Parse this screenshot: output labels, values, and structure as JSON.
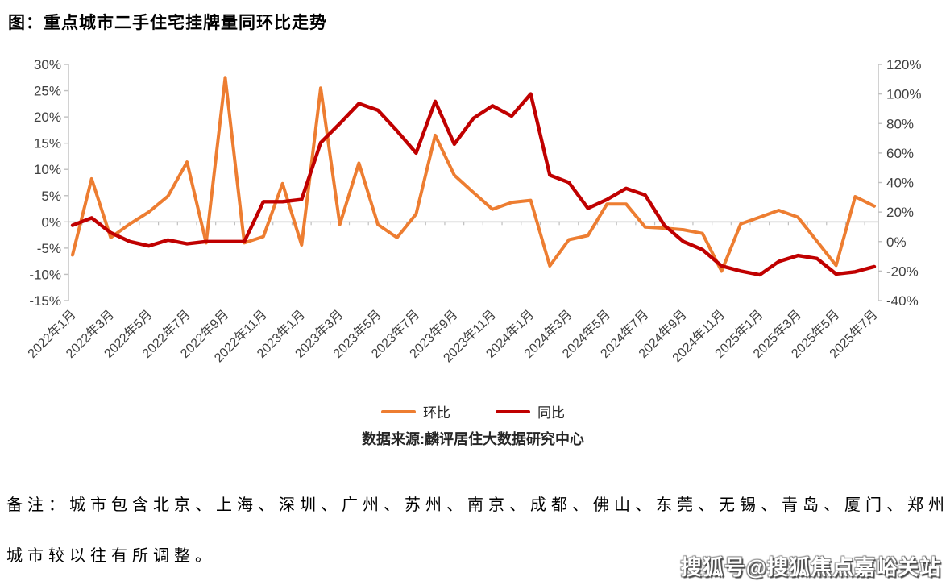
{
  "title": "图：重点城市二手住宅挂牌量同环比走势",
  "legend": {
    "mom": "环比",
    "yoy": "同比"
  },
  "source": "数据来源:麟评居住大数据研究中心",
  "note": {
    "line1": "备注：城市包含北京、上海、深圳、广州、苏州、南京、成都、佛山、东莞、无锡、青岛、厦门、郑州，",
    "line2": "城市较以往有所调整。"
  },
  "watermark": "搜狐号@搜狐焦点嘉峪关站",
  "colors": {
    "mom": "#ED7D31",
    "yoy": "#C00000",
    "axis_line": "#BFBFBF",
    "tick_text": "#404040"
  },
  "chart_data": {
    "type": "line",
    "x": [
      "2022年1月",
      "2022年2月",
      "2022年3月",
      "2022年4月",
      "2022年5月",
      "2022年6月",
      "2022年7月",
      "2022年8月",
      "2022年9月",
      "2022年10月",
      "2022年11月",
      "2022年12月",
      "2023年1月",
      "2023年2月",
      "2023年3月",
      "2023年4月",
      "2023年5月",
      "2023年6月",
      "2023年7月",
      "2023年8月",
      "2023年9月",
      "2023年10月",
      "2023年11月",
      "2023年12月",
      "2024年1月",
      "2024年2月",
      "2024年3月",
      "2024年4月",
      "2024年5月",
      "2024年6月",
      "2024年7月",
      "2024年8月",
      "2024年9月",
      "2024年10月",
      "2024年11月",
      "2024年12月",
      "2025年1月",
      "2025年2月",
      "2025年3月",
      "2025年4月",
      "2025年5月",
      "2025年6月",
      "2025年7月"
    ],
    "x_label_every": 2,
    "series": [
      {
        "name": "环比",
        "axis": "left",
        "color": "#ED7D31",
        "values": [
          -6.3,
          8.2,
          -3.0,
          -0.4,
          1.9,
          4.9,
          11.4,
          -4.0,
          27.5,
          -4.0,
          -2.8,
          7.3,
          -4.4,
          25.5,
          -0.5,
          11.2,
          -0.5,
          -3.0,
          1.5,
          16.5,
          8.9,
          5.6,
          2.4,
          3.7,
          4.1,
          -8.4,
          -3.4,
          -2.6,
          3.4,
          3.4,
          -1.0,
          -1.2,
          -1.5,
          -2.2,
          -9.4,
          -0.4,
          0.9,
          2.2,
          0.9,
          -3.7,
          -8.3,
          4.8,
          3.0
        ]
      },
      {
        "name": "同比",
        "axis": "right",
        "color": "#C00000",
        "values": [
          11,
          16,
          6,
          0,
          -3,
          1,
          -1.5,
          0,
          0,
          0,
          27,
          27,
          28.5,
          67,
          80,
          93.5,
          89,
          75,
          60,
          95,
          66,
          83.5,
          92,
          85,
          100,
          45,
          40,
          22.5,
          28.5,
          36,
          31.5,
          11,
          0,
          -5.5,
          -16.5,
          -20,
          -22.5,
          -13.5,
          -9.5,
          -11.5,
          -22,
          -20.5,
          -17
        ]
      }
    ],
    "left_axis": {
      "min": -15,
      "max": 30,
      "step": 5,
      "format": "percent"
    },
    "right_axis": {
      "min": -40,
      "max": 120,
      "step": 20,
      "format": "percent"
    },
    "grid": "zero-line-only",
    "legend_position": "bottom"
  }
}
